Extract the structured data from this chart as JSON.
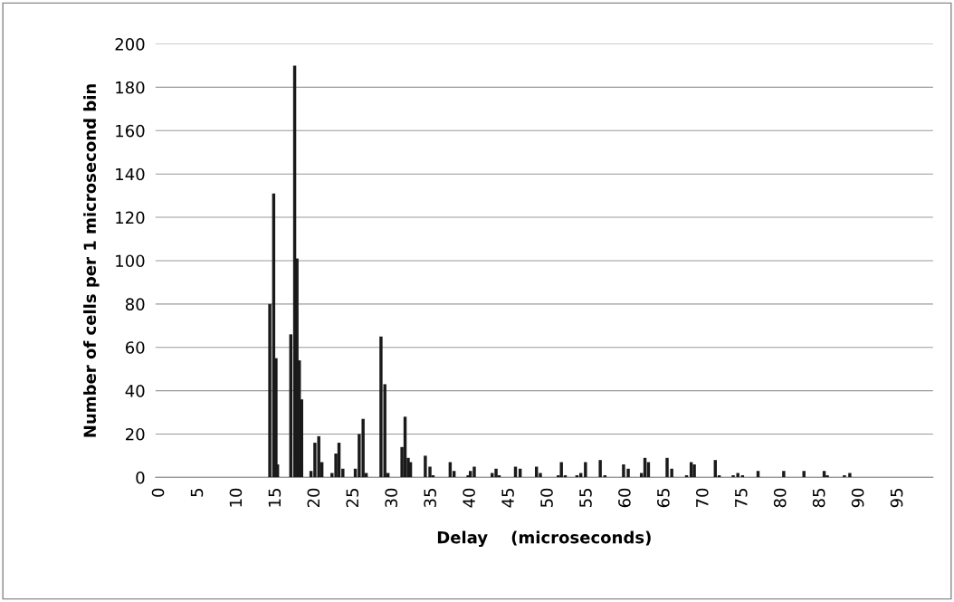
{
  "chart_data": {
    "type": "bar",
    "xlabel": "Delay    (microseconds)",
    "ylabel": "Number of cells per 1 microsecond bin",
    "x": [
      14.2,
      14.7,
      15.0,
      15.2,
      16.9,
      17.4,
      17.7,
      18.0,
      18.3,
      19.5,
      20.0,
      20.5,
      20.9,
      22.2,
      22.7,
      23.1,
      23.6,
      25.2,
      25.7,
      26.2,
      26.6,
      28.5,
      29.0,
      29.4,
      31.2,
      31.6,
      32.0,
      32.3,
      34.2,
      34.8,
      35.2,
      37.4,
      37.9,
      39.7,
      40.0,
      40.5,
      42.8,
      43.3,
      43.7,
      45.8,
      46.4,
      48.5,
      49.0,
      51.3,
      51.7,
      52.2,
      53.7,
      54.2,
      54.8,
      56.7,
      57.3,
      59.7,
      60.3,
      62.0,
      62.45,
      62.9,
      65.3,
      65.9,
      67.8,
      68.4,
      68.8,
      71.5,
      72.0,
      73.8,
      74.4,
      75.0,
      77.0,
      80.3,
      82.9,
      85.5,
      85.9,
      88.1,
      88.8
    ],
    "series": [
      {
        "color": "#1a1a1a",
        "values": [
          80,
          131,
          55,
          6,
          66,
          190,
          101,
          54,
          36,
          3,
          16,
          19,
          7,
          2,
          11,
          16,
          4,
          4,
          20,
          27,
          2,
          65,
          43,
          2,
          14,
          28,
          9,
          7,
          10,
          5,
          1,
          7,
          3,
          1,
          3,
          5,
          2,
          4,
          1,
          5,
          4,
          5,
          2,
          1,
          7,
          1,
          1,
          2,
          7,
          8,
          1,
          6,
          4,
          2,
          9,
          7,
          9,
          4,
          1,
          7,
          6,
          8,
          1,
          1,
          2,
          1,
          3,
          3,
          3,
          3,
          1,
          1,
          2
        ]
      }
    ],
    "xlim": [
      -0.5,
      99.5
    ],
    "xticks": [
      0,
      5,
      10,
      15,
      20,
      25,
      30,
      35,
      40,
      45,
      50,
      55,
      60,
      65,
      70,
      75,
      80,
      85,
      90,
      95
    ],
    "ylim": [
      0,
      200
    ],
    "yticks": [
      0,
      20,
      40,
      60,
      80,
      100,
      120,
      140,
      160,
      180,
      200
    ],
    "grid": "y"
  }
}
